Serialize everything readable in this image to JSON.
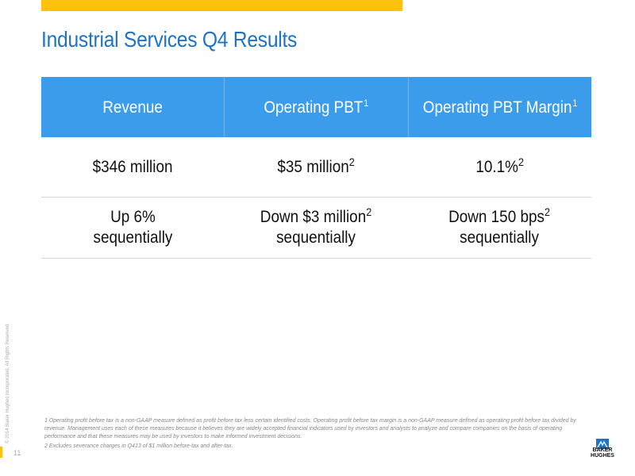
{
  "slide": {
    "title": "Industrial Services Q4 Results",
    "page_number": "11",
    "copyright": "© 2014 Baker Hughes Incorporated. All Rights Reserved."
  },
  "table": {
    "headers": [
      {
        "label": "Revenue",
        "sup": ""
      },
      {
        "label": "Operating PBT",
        "sup": "1"
      },
      {
        "label": "Operating PBT Margin",
        "sup": "1"
      }
    ],
    "rows": [
      [
        {
          "line1": "$346 million",
          "line2": "",
          "sup": ""
        },
        {
          "line1": "$35 million",
          "line2": "",
          "sup": "2"
        },
        {
          "line1": "10.1%",
          "line2": "",
          "sup": "2"
        }
      ],
      [
        {
          "line1": "Up 6%",
          "line2": "sequentially",
          "sup": ""
        },
        {
          "line1": "Down $3 million",
          "line2": "sequentially",
          "sup": "2"
        },
        {
          "line1": "Down 150 bps",
          "line2": "sequentially",
          "sup": "2"
        }
      ]
    ]
  },
  "footnotes": {
    "note1": "1 Operating profit before tax is a non-GAAP measure defined as profit before tax less certain identified costs. Operating profit before tax margin is a non-GAAP measure defined as operating profit before tax divided by revenue. Management uses each of these measures because it believes they are widely accepted financial indicators used by investors and analysts to analyze and compare companies on the basis of operating performance and that these measures may be used by investors to make informed investment decisions.",
    "note2": "2 Excludes severance charges in Q413 of $1 million before-tax and after-tax."
  },
  "logo": {
    "line1": "BAKER",
    "line2": "HUGHES",
    "icon": "baker-hughes-logo-icon"
  },
  "colors": {
    "accent_yellow": "#FDC20F",
    "title_blue": "#1E73C4",
    "header_blue": "#3B9CEB"
  }
}
